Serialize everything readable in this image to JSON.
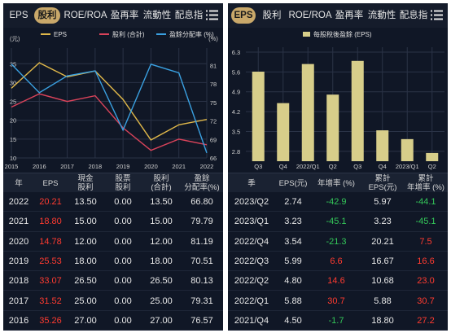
{
  "left": {
    "tabs": [
      {
        "label": "EPS",
        "active": false
      },
      {
        "label": "股利",
        "active": true
      },
      {
        "label": "ROE/ROA",
        "active": false
      },
      {
        "label": "盈再率",
        "active": false
      },
      {
        "label": "流動性",
        "active": false
      },
      {
        "label": "配息指",
        "active": false
      }
    ],
    "menu_icon": "list-icon",
    "legend": [
      {
        "label": "EPS",
        "color": "#e0b84a"
      },
      {
        "label": "股利 (合計)",
        "color": "#d9435a"
      },
      {
        "label": "盈餘分配率 (%)",
        "color": "#3aa0e0"
      }
    ],
    "left_unit": "(元)",
    "right_unit": "(%)",
    "chart_data": {
      "type": "line",
      "x": [
        "2015",
        "2016",
        "2017",
        "2018",
        "2019",
        "2020",
        "2021",
        "2022"
      ],
      "series": [
        {
          "name": "EPS",
          "axis": "left",
          "color": "#e0b84a",
          "values": [
            28.5,
            35.26,
            31.52,
            33.07,
            25.53,
            14.78,
            18.8,
            20.21
          ]
        },
        {
          "name": "股利 (合計)",
          "axis": "left",
          "color": "#d9435a",
          "values": [
            23.5,
            27.0,
            25.0,
            26.5,
            18.0,
            12.0,
            15.0,
            13.5
          ]
        },
        {
          "name": "盈餘分配率 (%)",
          "axis": "right",
          "color": "#3aa0e0",
          "values": [
            81.2,
            76.57,
            79.31,
            80.13,
            70.51,
            81.19,
            79.79,
            66.8
          ]
        }
      ],
      "y_left_ticks": [
        "35",
        "30",
        "25",
        "20",
        "15",
        "10"
      ],
      "y_left_range": [
        10,
        37
      ],
      "y_right_ticks": [
        "81",
        "78",
        "75",
        "72",
        "69",
        "66"
      ],
      "y_right_range": [
        66,
        82.5
      ],
      "grid": true
    },
    "table": {
      "headers": [
        "年",
        "EPS",
        "現金\n股利",
        "股票\n股利",
        "股利\n(合計)",
        "盈餘\n分配率(%)"
      ],
      "rows": [
        [
          "2022",
          "20.21",
          "13.50",
          "0.00",
          "13.50",
          "66.80"
        ],
        [
          "2021",
          "18.80",
          "15.00",
          "0.00",
          "15.00",
          "79.79"
        ],
        [
          "2020",
          "14.78",
          "12.00",
          "0.00",
          "12.00",
          "81.19"
        ],
        [
          "2019",
          "25.53",
          "18.00",
          "0.00",
          "18.00",
          "70.51"
        ],
        [
          "2018",
          "33.07",
          "26.50",
          "0.00",
          "26.50",
          "80.13"
        ],
        [
          "2017",
          "31.52",
          "25.00",
          "0.00",
          "25.00",
          "79.31"
        ],
        [
          "2016",
          "35.26",
          "27.00",
          "0.00",
          "27.00",
          "76.57"
        ]
      ]
    }
  },
  "right": {
    "tabs": [
      {
        "label": "EPS",
        "active": true
      },
      {
        "label": "股利",
        "active": false
      },
      {
        "label": "ROE/ROA",
        "active": false
      },
      {
        "label": "盈再率",
        "active": false
      },
      {
        "label": "流動性",
        "active": false
      },
      {
        "label": "配息指",
        "active": false
      }
    ],
    "menu_icon": "list-icon",
    "legend": [
      {
        "label": "每股稅後盈餘 (EPS)",
        "color": "#d7ce8a"
      }
    ],
    "chart_data": {
      "type": "bar",
      "categories": [
        "Q3",
        "Q4",
        "2022/Q1",
        "Q2",
        "Q3",
        "Q4",
        "2023/Q1",
        "Q2"
      ],
      "values": [
        5.61,
        4.5,
        5.88,
        4.8,
        5.99,
        3.54,
        3.23,
        2.74
      ],
      "color": "#d7ce8a",
      "y_ticks": [
        "6.3",
        "5.6",
        "4.9",
        "4.2",
        "3.5",
        "2.8"
      ],
      "y_range": [
        2.45,
        6.3
      ],
      "grid": true
    },
    "table": {
      "headers": [
        "季",
        "EPS(元)",
        "年增率 (%)",
        "累計\nEPS(元)",
        "累計\n年增率 (%)"
      ],
      "rows": [
        {
          "q": "2023/Q2",
          "eps": "2.74",
          "yoy": "-42.9",
          "yoy_c": "green",
          "cum": "5.97",
          "cyoy": "-44.1",
          "cyoy_c": "green"
        },
        {
          "q": "2023/Q1",
          "eps": "3.23",
          "yoy": "-45.1",
          "yoy_c": "green",
          "cum": "3.23",
          "cyoy": "-45.1",
          "cyoy_c": "green"
        },
        {
          "q": "2022/Q4",
          "eps": "3.54",
          "yoy": "-21.3",
          "yoy_c": "green",
          "cum": "20.21",
          "cyoy": "7.5",
          "cyoy_c": "red"
        },
        {
          "q": "2022/Q3",
          "eps": "5.99",
          "yoy": "6.6",
          "yoy_c": "red",
          "cum": "16.67",
          "cyoy": "16.6",
          "cyoy_c": "red"
        },
        {
          "q": "2022/Q2",
          "eps": "4.80",
          "yoy": "14.6",
          "yoy_c": "red",
          "cum": "10.68",
          "cyoy": "23.0",
          "cyoy_c": "red"
        },
        {
          "q": "2022/Q1",
          "eps": "5.88",
          "yoy": "30.7",
          "yoy_c": "red",
          "cum": "5.88",
          "cyoy": "30.7",
          "cyoy_c": "red"
        },
        {
          "q": "2021/Q4",
          "eps": "4.50",
          "yoy": "-1.7",
          "yoy_c": "green",
          "cum": "18.80",
          "cyoy": "27.2",
          "cyoy_c": "red"
        }
      ]
    }
  }
}
